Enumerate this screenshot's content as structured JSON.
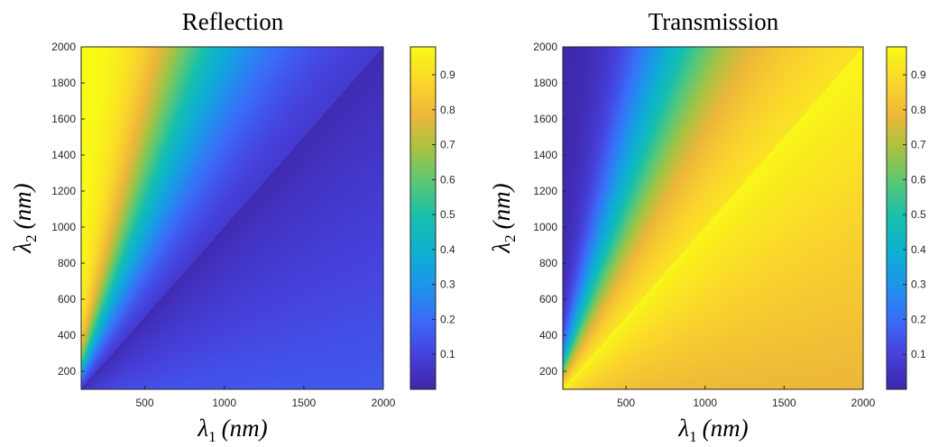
{
  "chart_data": [
    {
      "type": "heatmap",
      "title": "Reflection",
      "xlabel": {
        "symbol": "λ",
        "sub": "1",
        "unit": "(nm)"
      },
      "ylabel": {
        "symbol": "λ",
        "sub": "2",
        "unit": "(nm)"
      },
      "xlim": [
        100,
        2000
      ],
      "ylim": [
        100,
        2000
      ],
      "xticks": [
        500,
        1000,
        1500,
        2000
      ],
      "yticks": [
        200,
        400,
        600,
        800,
        1000,
        1200,
        1400,
        1600,
        1800,
        2000
      ],
      "clim": [
        0,
        0.98
      ],
      "cticks": [
        0.1,
        0.2,
        0.3,
        0.4,
        0.5,
        0.6,
        0.7,
        0.8,
        0.9
      ],
      "colormap": "parula",
      "grid": false,
      "description_of_values": "Value is high (≈0.98) where λ1 << λ2 (upper-left), falls through 0.5 near λ2 ≈ 2.2·λ1, and is low (≈0.02–0.15) for λ1 ≥ λ2.",
      "samples": [
        {
          "x": 150,
          "y": 2000,
          "v": 0.95
        },
        {
          "x": 300,
          "y": 2000,
          "v": 0.85
        },
        {
          "x": 500,
          "y": 2000,
          "v": 0.65
        },
        {
          "x": 700,
          "y": 2000,
          "v": 0.45
        },
        {
          "x": 1000,
          "y": 2000,
          "v": 0.2
        },
        {
          "x": 2000,
          "y": 2000,
          "v": 0.05
        },
        {
          "x": 150,
          "y": 1000,
          "v": 0.9
        },
        {
          "x": 400,
          "y": 1000,
          "v": 0.5
        },
        {
          "x": 1000,
          "y": 1000,
          "v": 0.05
        },
        {
          "x": 2000,
          "y": 1000,
          "v": 0.08
        },
        {
          "x": 200,
          "y": 200,
          "v": 0.02
        },
        {
          "x": 2000,
          "y": 100,
          "v": 0.15
        }
      ]
    },
    {
      "type": "heatmap",
      "title": "Transmission",
      "xlabel": {
        "symbol": "λ",
        "sub": "1",
        "unit": "(nm)"
      },
      "ylabel": {
        "symbol": "λ",
        "sub": "2",
        "unit": "(nm)"
      },
      "xlim": [
        100,
        2000
      ],
      "ylim": [
        100,
        2000
      ],
      "xticks": [
        500,
        1000,
        1500,
        2000
      ],
      "yticks": [
        200,
        400,
        600,
        800,
        1000,
        1200,
        1400,
        1600,
        1800,
        2000
      ],
      "clim": [
        0,
        0.98
      ],
      "cticks": [
        0.1,
        0.2,
        0.3,
        0.4,
        0.5,
        0.6,
        0.7,
        0.8,
        0.9
      ],
      "colormap": "parula",
      "grid": false,
      "description_of_values": "Complement of reflection: low (≈0.02) where λ1 << λ2 (upper-left), high (≈0.95–0.98) for λ1 ≥ λ2, slightly lower (≈0.85) toward bottom-right.",
      "samples": [
        {
          "x": 150,
          "y": 2000,
          "v": 0.05
        },
        {
          "x": 500,
          "y": 2000,
          "v": 0.35
        },
        {
          "x": 700,
          "y": 2000,
          "v": 0.55
        },
        {
          "x": 1000,
          "y": 2000,
          "v": 0.8
        },
        {
          "x": 2000,
          "y": 2000,
          "v": 0.95
        },
        {
          "x": 400,
          "y": 1000,
          "v": 0.5
        },
        {
          "x": 1000,
          "y": 1000,
          "v": 0.95
        },
        {
          "x": 200,
          "y": 200,
          "v": 0.98
        },
        {
          "x": 2000,
          "y": 100,
          "v": 0.85
        }
      ]
    }
  ]
}
